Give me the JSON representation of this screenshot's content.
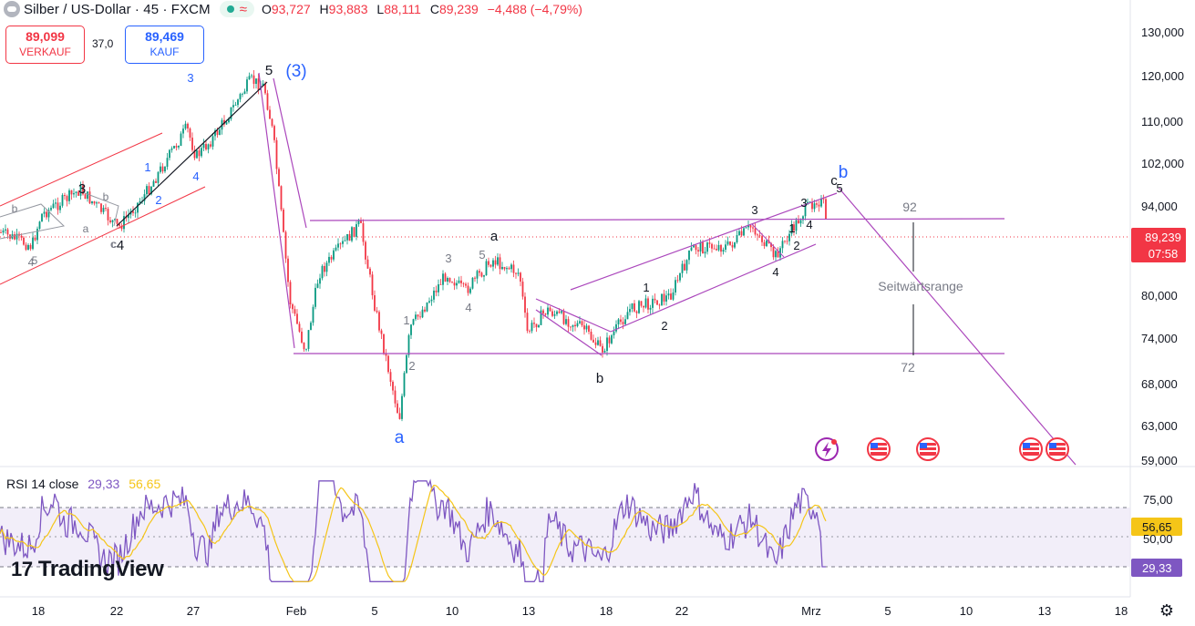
{
  "header": {
    "title": "Silber / US-Dollar · 45 · FXCM",
    "icon": "silver-coin-icon",
    "status_color": "#22ab94",
    "ohlc": [
      {
        "k": "O",
        "v": "93,727"
      },
      {
        "k": "H",
        "v": "93,883"
      },
      {
        "k": "L",
        "v": "88,111"
      },
      {
        "k": "C",
        "v": "89,239"
      },
      {
        "k": "",
        "v": "−4,488 (−4,79%)"
      }
    ]
  },
  "trade": {
    "sell_price": "89,099",
    "sell_label": "VERKAUF",
    "spread": "37,0",
    "buy_price": "89,469",
    "buy_label": "KAUF"
  },
  "rsi": {
    "title": "RSI 14 close",
    "value": "29,33",
    "ma_value": "56,65",
    "axis_labels": [
      "75,00",
      "56,65",
      "50,00",
      "29,33"
    ],
    "band_upper": 70,
    "band_lower": 30,
    "rsi_color": "#7e57c2",
    "ma_color": "#f5c518"
  },
  "logo": {
    "text": "TradingView"
  },
  "chart_data": {
    "type": "line",
    "title": "Silber / US-Dollar · 45 · FXCM",
    "price_axis_ticks": [
      "130,000",
      "120,000",
      "110,000",
      "102,000",
      "94,000",
      "80,000",
      "74,000",
      "68,000",
      "63,000",
      "59,000"
    ],
    "current_price": "89,239",
    "countdown": "07:58",
    "x_tick_labels": [
      "18",
      "22",
      "27",
      "Feb",
      "5",
      "10",
      "13",
      "18",
      "22",
      "Mrz",
      "5",
      "10",
      "13",
      "18"
    ],
    "series": [
      {
        "values_date": [
          "Jan 16",
          "Jan 19",
          "Jan 21",
          "Jan 22",
          "Jan 26",
          "Jan 28",
          "Jan 29",
          "Jan 30",
          "Jan 31",
          "Feb 2",
          "Feb 4",
          "Feb 5",
          "Feb 6",
          "Feb 9",
          "Feb 11",
          "Feb 12",
          "Feb 13",
          "Feb 16",
          "Feb 17",
          "Feb 19",
          "Feb 21",
          "Feb 24",
          "Feb 26",
          "Feb 27",
          "Mrz 1",
          "Mrz 2"
        ],
        "values": [
          90,
          95,
          88,
          93,
          116,
          119,
          120,
          108,
          72,
          90,
          92,
          82,
          66,
          86,
          87,
          88,
          78,
          77,
          72,
          80,
          86,
          89,
          86,
          84,
          96,
          89.2
        ]
      }
    ],
    "annotations": {
      "range_label": "Seitwärtsrange",
      "range_top": "92",
      "range_bottom": "72",
      "waves": [
        "1",
        "2",
        "3",
        "4",
        "5",
        "(3)",
        "a",
        "b",
        "c",
        "3",
        "4",
        "5",
        "3",
        "4",
        "1",
        "2",
        "b",
        "a",
        "b",
        "c",
        "4",
        "1",
        "2",
        "3",
        "4",
        "1",
        "2",
        "3",
        "4",
        "5",
        "a",
        "b"
      ]
    }
  }
}
